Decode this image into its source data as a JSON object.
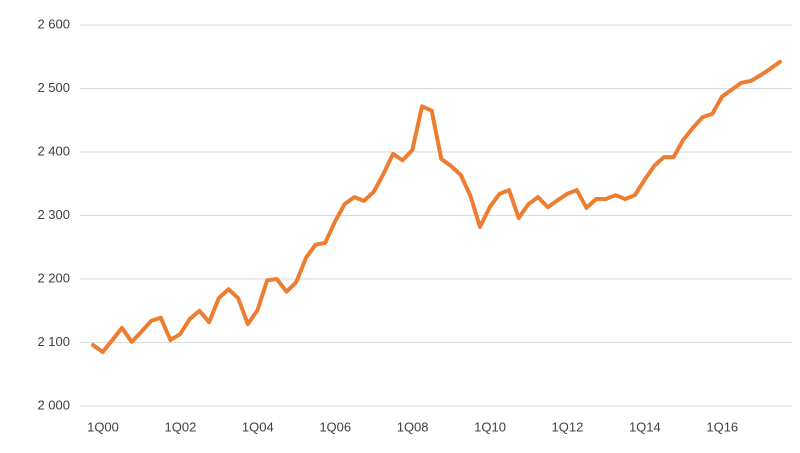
{
  "chart_data": {
    "type": "line",
    "categories": [
      "1Q00",
      null,
      null,
      null,
      null,
      null,
      null,
      null,
      "1Q02",
      null,
      null,
      null,
      null,
      null,
      null,
      null,
      "1Q04",
      null,
      null,
      null,
      null,
      null,
      null,
      null,
      "1Q06",
      null,
      null,
      null,
      null,
      null,
      null,
      null,
      "1Q08",
      null,
      null,
      null,
      null,
      null,
      null,
      null,
      "1Q10",
      null,
      null,
      null,
      null,
      null,
      null,
      null,
      "1Q12",
      null,
      null,
      null,
      null,
      null,
      null,
      null,
      "1Q14",
      null,
      null,
      null,
      null,
      null,
      null,
      null,
      "1Q16",
      null,
      null,
      null,
      null,
      null,
      null,
      null
    ],
    "values": [
      2096,
      2085,
      2104,
      2123,
      2101,
      2117,
      2134,
      2139,
      2104,
      2113,
      2137,
      2150,
      2132,
      2170,
      2184,
      2170,
      2129,
      2151,
      2198,
      2200,
      2180,
      2195,
      2233,
      2254,
      2257,
      2290,
      2318,
      2329,
      2323,
      2337,
      2365,
      2397,
      2387,
      2403,
      2472,
      2465,
      2389,
      2378,
      2364,
      2331,
      2282,
      2313,
      2334,
      2340,
      2296,
      2318,
      2329,
      2313,
      2324,
      2334,
      2340,
      2312,
      2326,
      2326,
      2332,
      2326,
      2332,
      2356,
      2378,
      2392,
      2392,
      2419,
      2438,
      2455,
      2460,
      2487,
      2498,
      2509,
      2512,
      2521,
      2531,
      2542
    ],
    "color": "#ed7d31",
    "ylim": [
      2000,
      2600
    ],
    "yticks": [
      {
        "value": 2000,
        "label": "2 000"
      },
      {
        "value": 2100,
        "label": "2 100"
      },
      {
        "value": 2200,
        "label": "2 200"
      },
      {
        "value": 2300,
        "label": "2 300"
      },
      {
        "value": 2400,
        "label": "2 400"
      },
      {
        "value": 2500,
        "label": "2 500"
      },
      {
        "value": 2600,
        "label": "2 600"
      }
    ],
    "grid": true
  }
}
